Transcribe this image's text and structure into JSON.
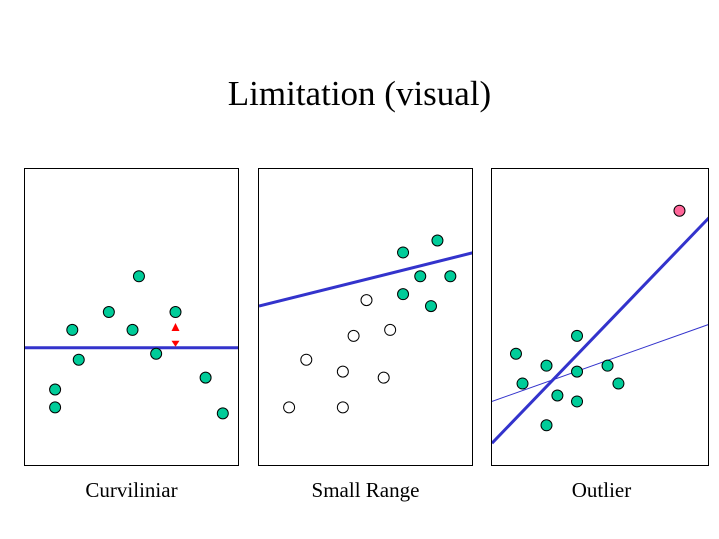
{
  "title": "Limitation (visual)",
  "colors": {
    "point_fill": "#00cc99",
    "outlier_fill": "#ff6699",
    "line": "#3333cc",
    "arrow": "#ff0000",
    "open_fill": "#ffffff"
  },
  "chart_data": [
    {
      "type": "scatter",
      "title": "Curviliniar",
      "xlim": [
        0,
        100
      ],
      "ylim": [
        0,
        100
      ],
      "grid": false,
      "series": [
        {
          "name": "points",
          "style": "filled",
          "x": [
            14,
            14,
            22,
            25,
            39,
            53,
            50,
            61,
            70,
            84,
            92
          ],
          "y": [
            26,
            20,
            46,
            36,
            52,
            64,
            46,
            38,
            52,
            30,
            18
          ]
        }
      ],
      "lines": [
        {
          "name": "fit",
          "weight": "thick",
          "x": [
            0,
            100
          ],
          "y": [
            40,
            40
          ]
        }
      ],
      "annotations": [
        {
          "type": "residual-arrow",
          "x": 70,
          "y_from": 40,
          "y_to": 52
        }
      ]
    },
    {
      "type": "scatter",
      "title": "Small Range",
      "xlim": [
        0,
        100
      ],
      "ylim": [
        0,
        100
      ],
      "grid": false,
      "series": [
        {
          "name": "sampled",
          "style": "filled",
          "x": [
            67,
            83,
            75,
            89,
            67,
            80
          ],
          "y": [
            72,
            76,
            64,
            64,
            58,
            54
          ]
        },
        {
          "name": "unsampled",
          "style": "open",
          "x": [
            50,
            61,
            44,
            22,
            39,
            58,
            14,
            39
          ],
          "y": [
            56,
            46,
            44,
            36,
            32,
            30,
            20,
            20
          ]
        }
      ],
      "lines": [
        {
          "name": "fit",
          "weight": "thick",
          "x": [
            0,
            100
          ],
          "y": [
            54,
            72
          ]
        }
      ]
    },
    {
      "type": "scatter",
      "title": "Outlier",
      "xlim": [
        0,
        100
      ],
      "ylim": [
        0,
        100
      ],
      "grid": false,
      "series": [
        {
          "name": "points",
          "style": "filled",
          "x": [
            11,
            25,
            39,
            14,
            39,
            53,
            58,
            30,
            39,
            25
          ],
          "y": [
            38,
            34,
            44,
            28,
            32,
            34,
            28,
            24,
            22,
            14
          ]
        },
        {
          "name": "outlier",
          "style": "outlier",
          "x": [
            86
          ],
          "y": [
            86
          ]
        }
      ],
      "lines": [
        {
          "name": "fit-with-outlier",
          "weight": "thick",
          "x": [
            0,
            100
          ],
          "y": [
            8,
            84
          ]
        },
        {
          "name": "fit-without-outlier",
          "weight": "thin",
          "x": [
            0,
            100
          ],
          "y": [
            22,
            48
          ]
        }
      ]
    }
  ]
}
